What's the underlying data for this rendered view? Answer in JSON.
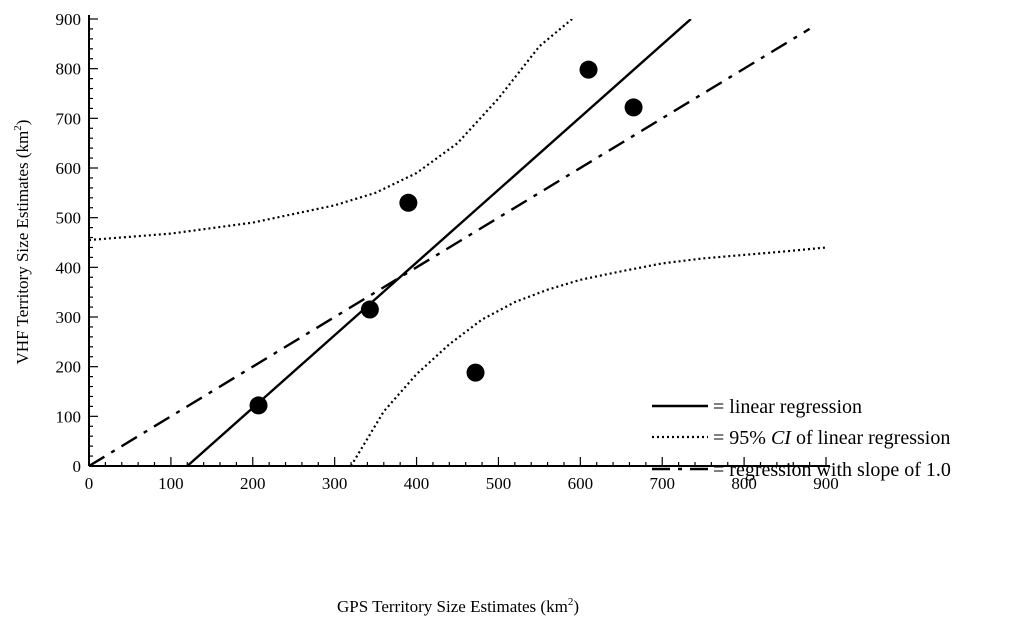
{
  "chart_data": {
    "type": "scatter",
    "title": "",
    "xlabel": {
      "main": "GPS Territory Size Estimates (km",
      "sup": "2",
      "close": ")"
    },
    "ylabel": {
      "main": "VHF Territory Size Estimates (km",
      "sup": "2",
      "close": ")"
    },
    "xlim": [
      0,
      900
    ],
    "ylim": [
      0,
      900
    ],
    "xticks": [
      "0",
      "100",
      "200",
      "300",
      "400",
      "500",
      "600",
      "700",
      "800",
      "900"
    ],
    "yticks": [
      "0",
      "100",
      "200",
      "300",
      "400",
      "500",
      "600",
      "700",
      "800",
      "900"
    ],
    "grid": false,
    "legend_position": "lower-right",
    "points": [
      {
        "x": 207,
        "y": 122
      },
      {
        "x": 343,
        "y": 315
      },
      {
        "x": 390,
        "y": 530
      },
      {
        "x": 472,
        "y": 188
      },
      {
        "x": 610,
        "y": 798
      },
      {
        "x": 665,
        "y": 722
      }
    ],
    "lines": [
      {
        "key": "linear",
        "style": "solid",
        "legend_label": "= linear regression",
        "x": [
          120,
          735
        ],
        "y": [
          0,
          900
        ]
      },
      {
        "key": "ci_upper",
        "style": "dotted",
        "x": [
          0,
          100,
          200,
          300,
          350,
          400,
          450,
          500,
          550,
          590
        ],
        "y": [
          455,
          468,
          490,
          525,
          550,
          590,
          650,
          740,
          845,
          900
        ]
      },
      {
        "key": "ci_lower",
        "style": "dotted",
        "x": [
          320,
          360,
          400,
          440,
          480,
          520,
          560,
          600,
          650,
          700,
          750,
          800,
          850,
          900
        ],
        "y": [
          0,
          110,
          185,
          245,
          295,
          330,
          355,
          375,
          392,
          408,
          418,
          425,
          432,
          440
        ]
      },
      {
        "key": "slope1",
        "style": "dashdot",
        "legend_label": "= regression with slope of 1.0",
        "x": [
          0,
          880
        ],
        "y": [
          0,
          880
        ]
      }
    ],
    "legend": [
      {
        "key": "linear",
        "style": "solid",
        "text": "= linear regression"
      },
      {
        "key": "ci",
        "style": "dotted",
        "prefix": "= 95% ",
        "ci": "CI",
        "suffix": " of linear regression"
      },
      {
        "key": "slope1",
        "style": "dashdot",
        "text": "= regression with slope of 1.0"
      }
    ]
  }
}
